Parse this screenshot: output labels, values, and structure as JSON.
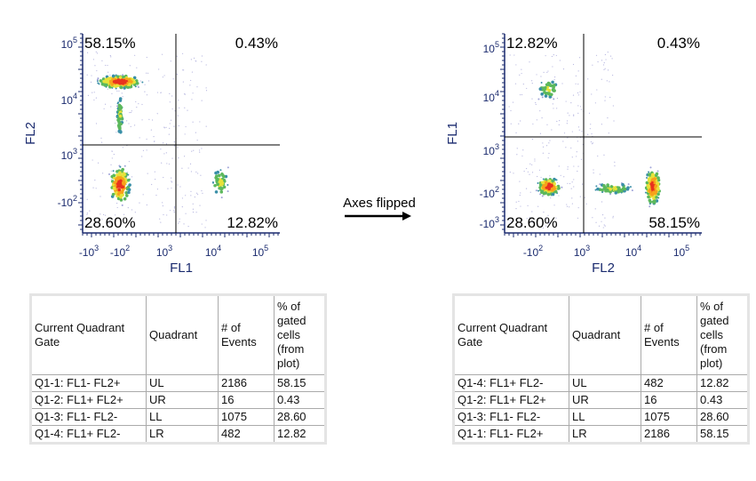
{
  "plots": [
    {
      "quadrants": {
        "ul": "58.15%",
        "ur": "0.43%",
        "ll": "28.60%",
        "lr": "12.82%"
      },
      "x_label": "FL1",
      "y_label": "FL2",
      "xticks": [
        {
          "base": "-10",
          "exp": "3"
        },
        {
          "base": "-10",
          "exp": "2"
        },
        {
          "base": "10",
          "exp": "3"
        },
        {
          "base": "10",
          "exp": "4"
        },
        {
          "base": "10",
          "exp": "5"
        }
      ],
      "yticks": [
        {
          "base": "10",
          "exp": "5"
        },
        {
          "base": "10",
          "exp": "4"
        },
        {
          "base": "10",
          "exp": "3"
        },
        {
          "base": "-10",
          "exp": "2"
        }
      ]
    },
    {
      "quadrants": {
        "ul": "12.82%",
        "ur": "0.43%",
        "ll": "28.60%",
        "lr": "58.15%"
      },
      "x_label": "FL2",
      "y_label": "FL1",
      "xticks": [
        {
          "base": "-10",
          "exp": "2"
        },
        {
          "base": "10",
          "exp": "3"
        },
        {
          "base": "10",
          "exp": "4"
        },
        {
          "base": "10",
          "exp": "5"
        }
      ],
      "yticks": [
        {
          "base": "10",
          "exp": "5"
        },
        {
          "base": "10",
          "exp": "4"
        },
        {
          "base": "10",
          "exp": "3"
        },
        {
          "base": "-10",
          "exp": "2"
        },
        {
          "base": "-10",
          "exp": "3"
        }
      ]
    }
  ],
  "arrow_label": "Axes flipped",
  "tables": [
    {
      "header": [
        "Current Quadrant Gate",
        "Quadrant",
        "# of Events",
        "% of gated cells (from plot)"
      ],
      "rows": [
        [
          "Q1-1: FL1- FL2+",
          "UL",
          "2186",
          "58.15"
        ],
        [
          "Q1-2: FL1+ FL2+",
          "UR",
          "16",
          "0.43"
        ],
        [
          "Q1-3: FL1- FL2-",
          "LL",
          "1075",
          "28.60"
        ],
        [
          "Q1-4: FL1+ FL2-",
          "LR",
          "482",
          "12.82"
        ]
      ]
    },
    {
      "header": [
        "Current Quadrant Gate",
        "Quadrant",
        "# of Events",
        "% of gated cells (from plot)"
      ],
      "rows": [
        [
          "Q1-4: FL1+ FL2-",
          "UL",
          "482",
          "12.82"
        ],
        [
          "Q1-2: FL1+ FL2+",
          "UR",
          "16",
          "0.43"
        ],
        [
          "Q1-3: FL1- FL2-",
          "LL",
          "1075",
          "28.60"
        ],
        [
          "Q1-1: FL1- FL2+",
          "LR",
          "2186",
          "58.15"
        ]
      ]
    }
  ]
}
